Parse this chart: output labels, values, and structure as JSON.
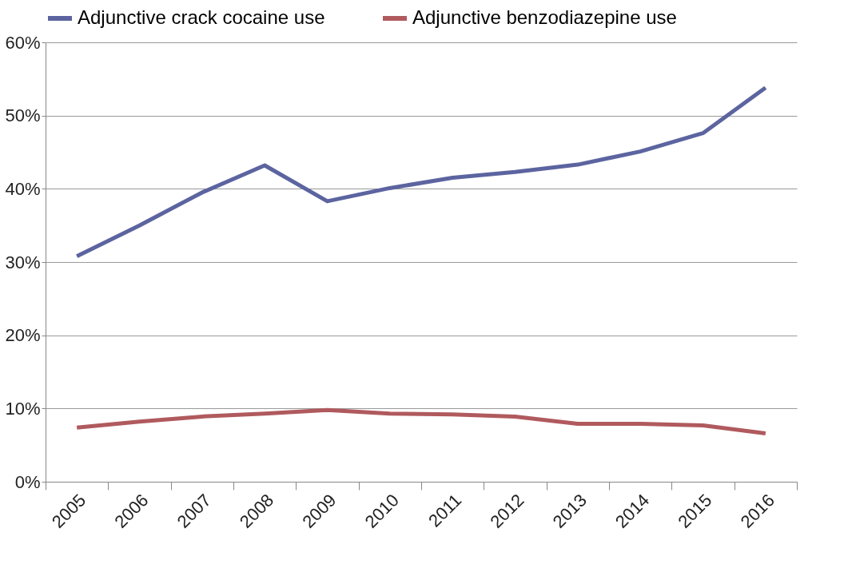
{
  "chart_data": {
    "type": "line",
    "categories": [
      "2005",
      "2006",
      "2007",
      "2008",
      "2009",
      "2010",
      "2011",
      "2012",
      "2013",
      "2014",
      "2015",
      "2016"
    ],
    "series": [
      {
        "name": "Adjunctive crack cocaine use",
        "color": "#5c64a0",
        "values": [
          30.8,
          35.0,
          39.5,
          43.2,
          38.3,
          40.1,
          41.5,
          42.3,
          43.3,
          45.1,
          47.6,
          53.8
        ]
      },
      {
        "name": "Adjunctive benzodiazepine use",
        "color": "#b05a5e",
        "values": [
          7.4,
          8.2,
          8.9,
          9.3,
          9.8,
          9.3,
          9.2,
          8.9,
          7.9,
          7.9,
          7.7,
          6.6
        ]
      }
    ],
    "ylim": [
      0,
      60
    ],
    "yticks": [
      {
        "value": 0,
        "label": "0%"
      },
      {
        "value": 10,
        "label": "10%"
      },
      {
        "value": 20,
        "label": "20%"
      },
      {
        "value": 30,
        "label": "30%"
      },
      {
        "value": 40,
        "label": "40%"
      },
      {
        "value": 50,
        "label": "50%"
      },
      {
        "value": 60,
        "label": "60%"
      }
    ],
    "grid": "y",
    "legend": "top",
    "marker": "none",
    "line_style": "solid"
  }
}
